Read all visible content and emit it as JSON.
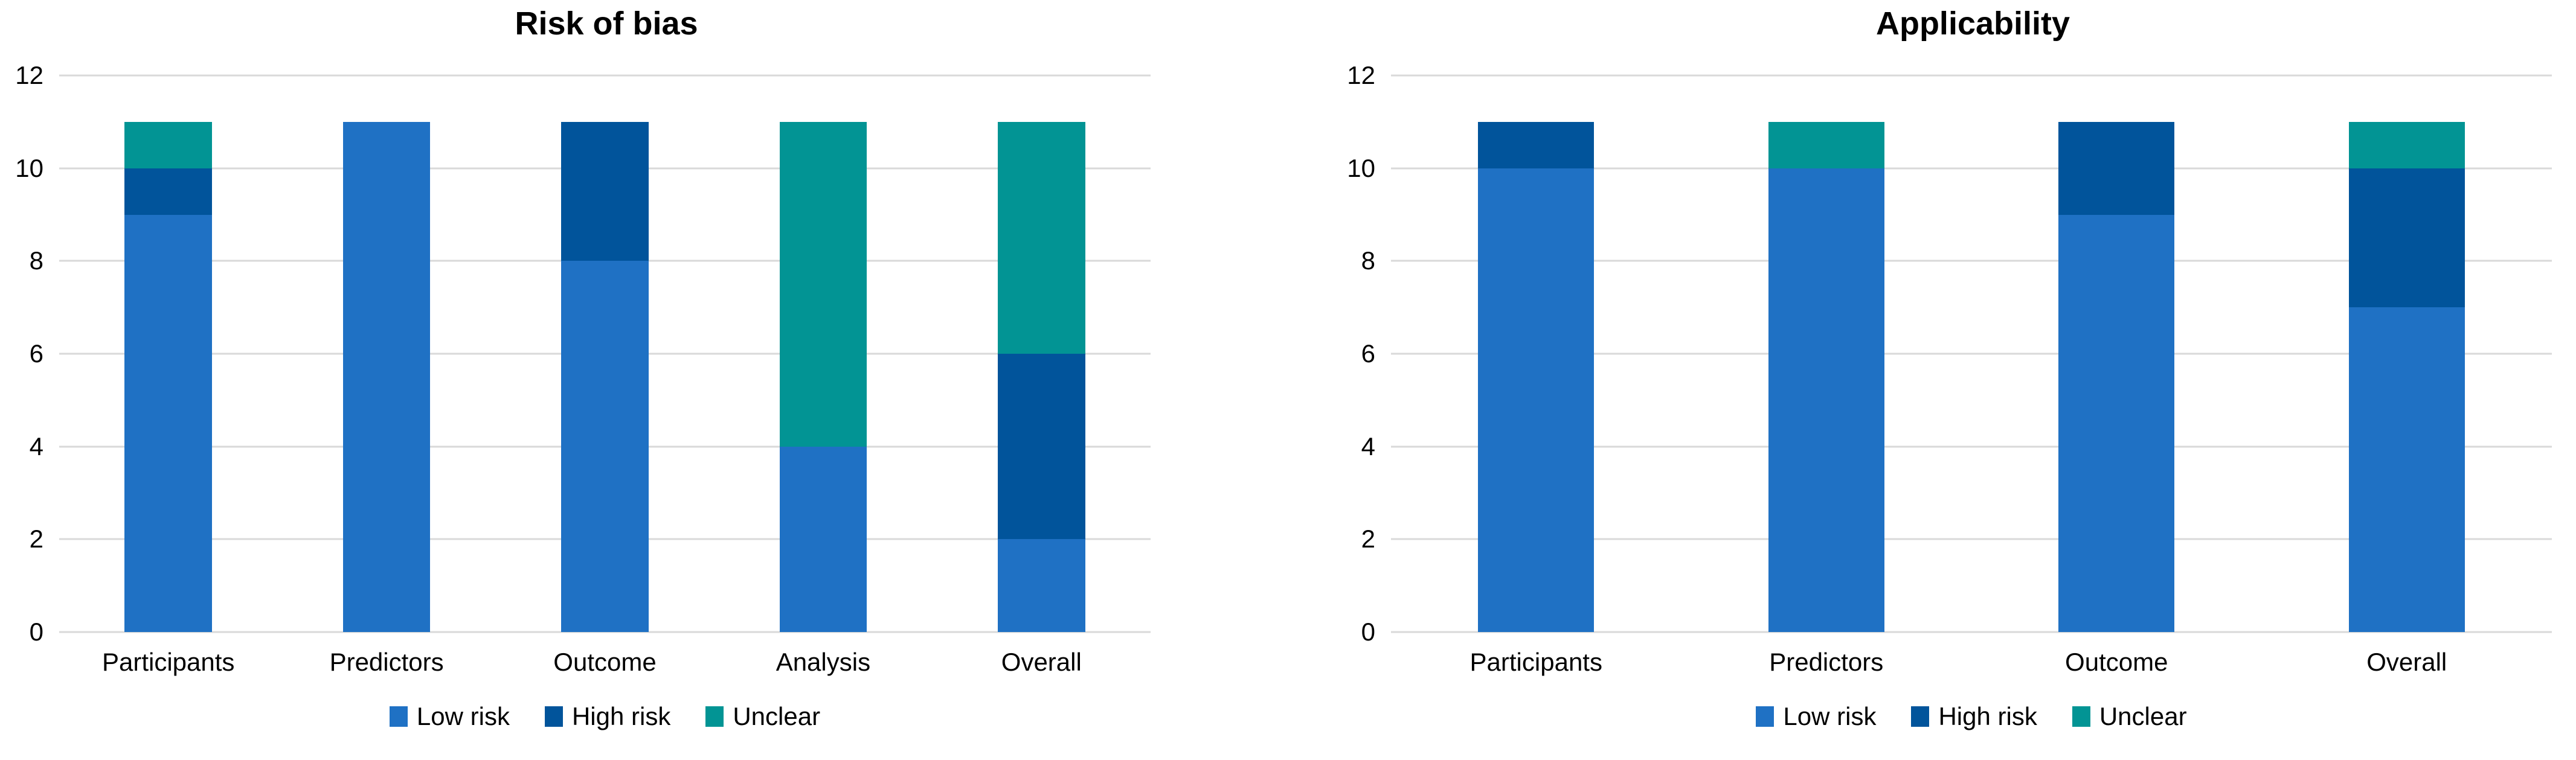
{
  "page": {
    "background_color": "#FFFFFF",
    "text_color": "#000000",
    "gridline_color": "#D9D9D9"
  },
  "chart_data": [
    {
      "type": "bar",
      "stacked": true,
      "title": "Risk of bias",
      "categories": [
        "Participants",
        "Predictors",
        "Outcome",
        "Analysis",
        "Overall"
      ],
      "series": [
        {
          "name": "Low risk",
          "color": "#1F71C4",
          "values": [
            9,
            11,
            8,
            4,
            2
          ]
        },
        {
          "name": "High risk",
          "color": "#01549B",
          "values": [
            1,
            0,
            3,
            0,
            4
          ]
        },
        {
          "name": "Unclear",
          "color": "#029494",
          "values": [
            1,
            0,
            0,
            7,
            5
          ]
        }
      ],
      "xlabel": "",
      "ylabel": "",
      "ylim": [
        0,
        12
      ],
      "yticks": [
        0,
        2,
        4,
        6,
        8,
        10,
        12
      ],
      "grid": true,
      "legend_position": "bottom",
      "bar_fraction": 0.4
    },
    {
      "type": "bar",
      "stacked": true,
      "title": "Applicability",
      "categories": [
        "Participants",
        "Predictors",
        "Outcome",
        "Overall"
      ],
      "series": [
        {
          "name": "Low risk",
          "color": "#1F71C4",
          "values": [
            10,
            10,
            9,
            7
          ]
        },
        {
          "name": "High risk",
          "color": "#01549B",
          "values": [
            1,
            0,
            2,
            3
          ]
        },
        {
          "name": "Unclear",
          "color": "#029494",
          "values": [
            0,
            1,
            0,
            1
          ]
        }
      ],
      "xlabel": "",
      "ylabel": "",
      "ylim": [
        0,
        12
      ],
      "yticks": [
        0,
        2,
        4,
        6,
        8,
        10,
        12
      ],
      "grid": true,
      "legend_position": "bottom",
      "bar_fraction": 0.4
    }
  ]
}
